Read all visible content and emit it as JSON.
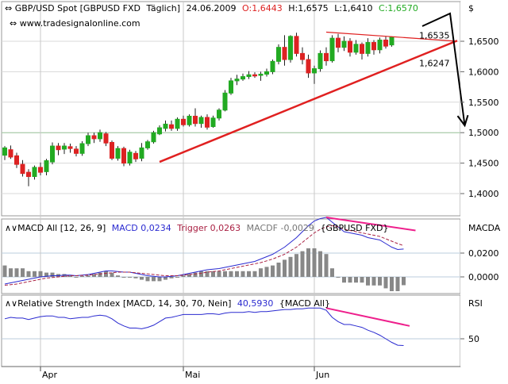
{
  "header": {
    "symbol": "GBP/USD Spot [GBPUSD FXD",
    "period": "Täglich]",
    "date": "24.06.2009",
    "open": "O:1,6443",
    "high": "H:1,6575",
    "low": "L:1,6410",
    "close": "C:1,6570",
    "website": "www.tradesignalonline.com",
    "currency_unit": "$"
  },
  "colors": {
    "up_candle": "#22aa22",
    "down_candle": "#dd2222",
    "trendline": "#e02020",
    "macd": "#2a2ad0",
    "trigger": "#aa2244",
    "histogram": "#888888",
    "divergence": "#ee1f8c",
    "rsi": "#2a2ad0",
    "forecast_arrow": "#000000"
  },
  "chart_data": [
    {
      "type": "candlestick",
      "title": "GBP/USD Spot [GBPUSD FXD Täglich]",
      "ylabel": "$",
      "ylim": [
        1.35,
        1.705
      ],
      "yticks": [
        "1,4000",
        "1,4500",
        "1,5000",
        "1,5500",
        "1,6000",
        "1,6500"
      ],
      "xticks": [
        "Apr",
        "Mai",
        "Jun"
      ],
      "candles": [
        {
          "o": 1.463,
          "h": 1.478,
          "l": 1.455,
          "c": 1.475
        },
        {
          "o": 1.472,
          "h": 1.479,
          "l": 1.457,
          "c": 1.46
        },
        {
          "o": 1.462,
          "h": 1.467,
          "l": 1.442,
          "c": 1.448
        },
        {
          "o": 1.448,
          "h": 1.455,
          "l": 1.428,
          "c": 1.433
        },
        {
          "o": 1.435,
          "h": 1.44,
          "l": 1.412,
          "c": 1.428
        },
        {
          "o": 1.428,
          "h": 1.446,
          "l": 1.423,
          "c": 1.443
        },
        {
          "o": 1.443,
          "h": 1.451,
          "l": 1.43,
          "c": 1.435
        },
        {
          "o": 1.436,
          "h": 1.457,
          "l": 1.43,
          "c": 1.454
        },
        {
          "o": 1.452,
          "h": 1.484,
          "l": 1.448,
          "c": 1.478
        },
        {
          "o": 1.478,
          "h": 1.483,
          "l": 1.463,
          "c": 1.472
        },
        {
          "o": 1.473,
          "h": 1.483,
          "l": 1.465,
          "c": 1.478
        },
        {
          "o": 1.477,
          "h": 1.482,
          "l": 1.467,
          "c": 1.474
        },
        {
          "o": 1.473,
          "h": 1.478,
          "l": 1.461,
          "c": 1.466
        },
        {
          "o": 1.466,
          "h": 1.486,
          "l": 1.462,
          "c": 1.482
        },
        {
          "o": 1.482,
          "h": 1.5,
          "l": 1.478,
          "c": 1.495
        },
        {
          "o": 1.495,
          "h": 1.5,
          "l": 1.483,
          "c": 1.49
        },
        {
          "o": 1.49,
          "h": 1.505,
          "l": 1.485,
          "c": 1.5
        },
        {
          "o": 1.498,
          "h": 1.501,
          "l": 1.478,
          "c": 1.483
        },
        {
          "o": 1.484,
          "h": 1.487,
          "l": 1.455,
          "c": 1.458
        },
        {
          "o": 1.458,
          "h": 1.478,
          "l": 1.454,
          "c": 1.474
        },
        {
          "o": 1.474,
          "h": 1.477,
          "l": 1.445,
          "c": 1.45
        },
        {
          "o": 1.45,
          "h": 1.472,
          "l": 1.446,
          "c": 1.468
        },
        {
          "o": 1.466,
          "h": 1.47,
          "l": 1.452,
          "c": 1.457
        },
        {
          "o": 1.458,
          "h": 1.483,
          "l": 1.453,
          "c": 1.475
        },
        {
          "o": 1.475,
          "h": 1.488,
          "l": 1.472,
          "c": 1.485
        },
        {
          "o": 1.485,
          "h": 1.503,
          "l": 1.482,
          "c": 1.5
        },
        {
          "o": 1.498,
          "h": 1.512,
          "l": 1.496,
          "c": 1.508
        },
        {
          "o": 1.507,
          "h": 1.52,
          "l": 1.502,
          "c": 1.514
        },
        {
          "o": 1.513,
          "h": 1.52,
          "l": 1.503,
          "c": 1.507
        },
        {
          "o": 1.507,
          "h": 1.525,
          "l": 1.503,
          "c": 1.522
        },
        {
          "o": 1.522,
          "h": 1.528,
          "l": 1.51,
          "c": 1.513
        },
        {
          "o": 1.513,
          "h": 1.53,
          "l": 1.51,
          "c": 1.527
        },
        {
          "o": 1.527,
          "h": 1.54,
          "l": 1.51,
          "c": 1.515
        },
        {
          "o": 1.515,
          "h": 1.528,
          "l": 1.508,
          "c": 1.525
        },
        {
          "o": 1.525,
          "h": 1.53,
          "l": 1.505,
          "c": 1.509
        },
        {
          "o": 1.51,
          "h": 1.528,
          "l": 1.508,
          "c": 1.524
        },
        {
          "o": 1.524,
          "h": 1.54,
          "l": 1.52,
          "c": 1.537
        },
        {
          "o": 1.537,
          "h": 1.57,
          "l": 1.535,
          "c": 1.565
        },
        {
          "o": 1.565,
          "h": 1.59,
          "l": 1.562,
          "c": 1.585
        },
        {
          "o": 1.585,
          "h": 1.595,
          "l": 1.578,
          "c": 1.588
        },
        {
          "o": 1.588,
          "h": 1.597,
          "l": 1.585,
          "c": 1.592
        },
        {
          "o": 1.592,
          "h": 1.601,
          "l": 1.588,
          "c": 1.595
        },
        {
          "o": 1.595,
          "h": 1.599,
          "l": 1.59,
          "c": 1.594
        },
        {
          "o": 1.594,
          "h": 1.6,
          "l": 1.585,
          "c": 1.596
        },
        {
          "o": 1.596,
          "h": 1.605,
          "l": 1.592,
          "c": 1.6
        },
        {
          "o": 1.6,
          "h": 1.62,
          "l": 1.596,
          "c": 1.617
        },
        {
          "o": 1.617,
          "h": 1.645,
          "l": 1.612,
          "c": 1.64
        },
        {
          "o": 1.64,
          "h": 1.66,
          "l": 1.61,
          "c": 1.62
        },
        {
          "o": 1.62,
          "h": 1.66,
          "l": 1.615,
          "c": 1.658
        },
        {
          "o": 1.658,
          "h": 1.664,
          "l": 1.625,
          "c": 1.63
        },
        {
          "o": 1.63,
          "h": 1.64,
          "l": 1.612,
          "c": 1.62
        },
        {
          "o": 1.62,
          "h": 1.628,
          "l": 1.59,
          "c": 1.598
        },
        {
          "o": 1.598,
          "h": 1.61,
          "l": 1.58,
          "c": 1.605
        },
        {
          "o": 1.605,
          "h": 1.635,
          "l": 1.6,
          "c": 1.63
        },
        {
          "o": 1.63,
          "h": 1.64,
          "l": 1.61,
          "c": 1.618
        },
        {
          "o": 1.618,
          "h": 1.66,
          "l": 1.615,
          "c": 1.655
        },
        {
          "o": 1.655,
          "h": 1.662,
          "l": 1.632,
          "c": 1.64
        },
        {
          "o": 1.64,
          "h": 1.658,
          "l": 1.634,
          "c": 1.65
        },
        {
          "o": 1.65,
          "h": 1.655,
          "l": 1.625,
          "c": 1.632
        },
        {
          "o": 1.632,
          "h": 1.652,
          "l": 1.628,
          "c": 1.645
        },
        {
          "o": 1.645,
          "h": 1.648,
          "l": 1.62,
          "c": 1.63
        },
        {
          "o": 1.63,
          "h": 1.655,
          "l": 1.625,
          "c": 1.648
        },
        {
          "o": 1.648,
          "h": 1.652,
          "l": 1.628,
          "c": 1.636
        },
        {
          "o": 1.636,
          "h": 1.656,
          "l": 1.63,
          "c": 1.652
        },
        {
          "o": 1.652,
          "h": 1.658,
          "l": 1.638,
          "c": 1.642
        },
        {
          "o": 1.644,
          "h": 1.658,
          "l": 1.641,
          "c": 1.657
        }
      ],
      "annotations": [
        {
          "label": "1,6535",
          "value": 1.6535
        },
        {
          "label": "1,6247",
          "value": 1.6247
        }
      ],
      "trendlines": [
        {
          "name": "support",
          "from": [
            26,
            1.452
          ],
          "to": [
            76,
            1.651
          ]
        },
        {
          "name": "resistance",
          "from": [
            54,
            1.665
          ],
          "to": [
            76,
            1.65
          ]
        }
      ],
      "forecast_arrow": {
        "from": [
          72,
          1.652
        ],
        "peak": [
          74,
          1.693
        ],
        "to": [
          77,
          1.53
        ]
      }
    },
    {
      "type": "line",
      "title": "MACD All [12, 26, 9]",
      "legend": [
        "MACD 0,0234",
        "Trigger 0,0263",
        "MACDF -0,0029",
        "{GBPUSD FXD}"
      ],
      "ylabel": "MACDA",
      "ylim": [
        -0.012,
        0.05
      ],
      "yticks": [
        "0,0000",
        "0,0200"
      ],
      "series": [
        {
          "name": "MACD",
          "values": [
            -0.006,
            -0.005,
            -0.004,
            -0.003,
            -0.002,
            -0.001,
            0.0,
            0.0005,
            0.001,
            0.001,
            0.0015,
            0.0015,
            0.001,
            0.0015,
            0.002,
            0.003,
            0.004,
            0.005,
            0.005,
            0.0045,
            0.004,
            0.004,
            0.003,
            0.002,
            0.001,
            0.0005,
            0.0,
            0.0,
            0.0005,
            0.001,
            0.002,
            0.003,
            0.004,
            0.005,
            0.006,
            0.0065,
            0.007,
            0.008,
            0.009,
            0.01,
            0.011,
            0.012,
            0.013,
            0.015,
            0.017,
            0.019,
            0.022,
            0.025,
            0.029,
            0.033,
            0.038,
            0.043,
            0.047,
            0.049,
            0.05,
            0.046,
            0.042,
            0.038,
            0.037,
            0.036,
            0.035,
            0.033,
            0.032,
            0.031,
            0.028,
            0.025,
            0.023,
            0.0234
          ]
        },
        {
          "name": "Trigger",
          "values": [
            -0.007,
            -0.0065,
            -0.006,
            -0.005,
            -0.004,
            -0.003,
            -0.002,
            -0.001,
            -0.0005,
            0.0,
            0.0005,
            0.001,
            0.001,
            0.0012,
            0.0015,
            0.002,
            0.0025,
            0.003,
            0.0035,
            0.004,
            0.004,
            0.004,
            0.0035,
            0.003,
            0.0025,
            0.002,
            0.0015,
            0.001,
            0.001,
            0.001,
            0.0015,
            0.002,
            0.0025,
            0.003,
            0.004,
            0.0045,
            0.005,
            0.006,
            0.007,
            0.008,
            0.009,
            0.01,
            0.011,
            0.012,
            0.0135,
            0.015,
            0.017,
            0.019,
            0.022,
            0.025,
            0.029,
            0.033,
            0.037,
            0.04,
            0.042,
            0.043,
            0.042,
            0.04,
            0.039,
            0.038,
            0.037,
            0.036,
            0.035,
            0.034,
            0.032,
            0.03,
            0.028,
            0.0263
          ]
        },
        {
          "name": "MACDF",
          "values": [
            0.004,
            0.003,
            0.003,
            0.003,
            0.002,
            0.002,
            0.002,
            0.0015,
            0.0015,
            0.001,
            0.001,
            0.0005,
            0.0,
            0.0003,
            0.0005,
            0.001,
            0.0015,
            0.002,
            0.0015,
            0.0005,
            0.0,
            0.0,
            -0.0005,
            -0.001,
            -0.0015,
            -0.0015,
            -0.0015,
            -0.001,
            -0.0005,
            0.0,
            0.0005,
            0.001,
            0.0015,
            0.002,
            0.002,
            0.002,
            0.002,
            0.002,
            0.002,
            0.002,
            0.002,
            0.002,
            0.002,
            0.003,
            0.0035,
            0.004,
            0.005,
            0.006,
            0.007,
            0.008,
            0.009,
            0.01,
            0.01,
            0.009,
            0.008,
            0.003,
            0.0,
            -0.002,
            -0.002,
            -0.002,
            -0.002,
            -0.003,
            -0.003,
            -0.003,
            -0.004,
            -0.005,
            -0.005,
            -0.0029
          ]
        }
      ]
    },
    {
      "type": "line",
      "title": "Relative Strength Index [MACD, 14, 30, 70, Nein]",
      "legend": [
        "40,5930",
        "{MACD All}"
      ],
      "ylabel": "RSI",
      "ylim": [
        10,
        100
      ],
      "yticks": [
        "50"
      ],
      "series": [
        {
          "name": "RSI",
          "values": [
            78,
            80,
            79,
            79,
            77,
            79,
            81,
            82,
            82,
            80,
            80,
            78,
            79,
            80,
            80,
            82,
            83,
            82,
            78,
            72,
            68,
            65,
            65,
            64,
            66,
            69,
            74,
            79,
            80,
            82,
            84,
            84,
            84,
            84,
            85,
            85,
            84,
            86,
            87,
            87,
            87,
            88,
            87,
            88,
            88,
            89,
            90,
            91,
            91,
            92,
            92,
            93,
            93,
            93,
            90,
            80,
            74,
            70,
            70,
            68,
            66,
            62,
            59,
            55,
            50,
            45,
            41,
            40.593
          ]
        }
      ]
    }
  ],
  "divergence_lines": [
    {
      "panel": "price",
      "from": [
        54,
        1.665
      ],
      "to": [
        71,
        1.65
      ]
    },
    {
      "panel": "macd",
      "from": [
        54,
        0.05
      ],
      "to": [
        69,
        0.039
      ]
    },
    {
      "panel": "rsi",
      "from": [
        54,
        93
      ],
      "to": [
        68,
        68
      ]
    }
  ]
}
